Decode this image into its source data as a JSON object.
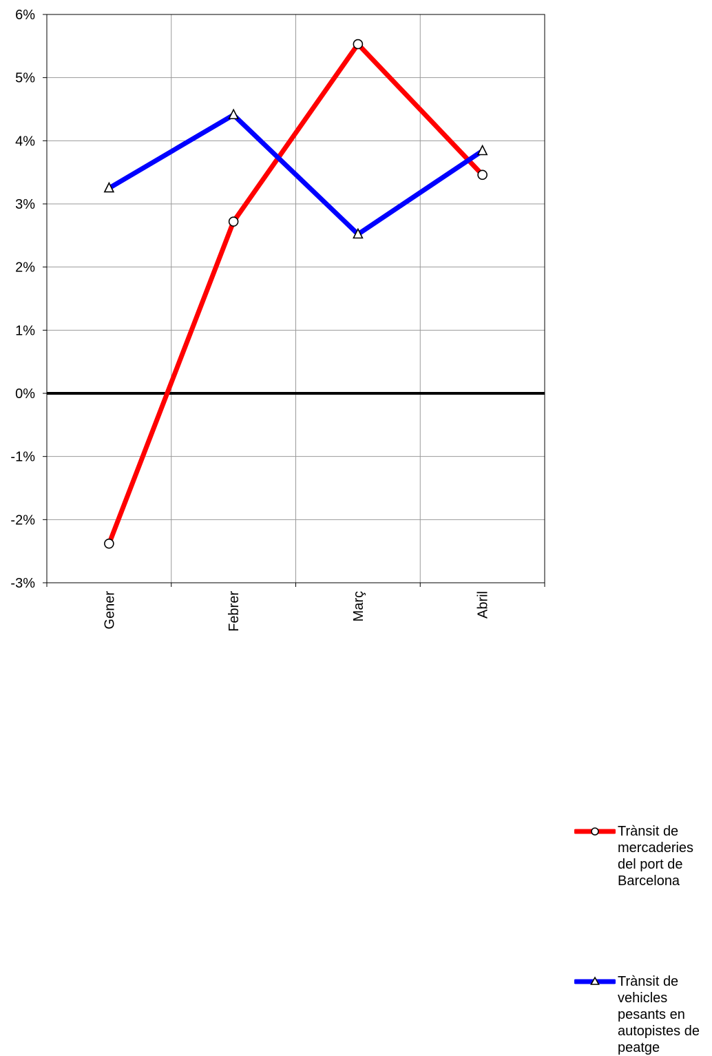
{
  "chart_data": {
    "type": "line",
    "categories": [
      "Gener",
      "Febrer",
      "Març",
      "Abril"
    ],
    "series": [
      {
        "name": "Trànsit de mercaderies del port de Barcelona",
        "values": [
          -2.38,
          2.72,
          5.53,
          3.46
        ],
        "color": "#ff0000",
        "marker": "circle"
      },
      {
        "name": "Trànsit de vehicles pesants en autopistes de peatge",
        "values": [
          3.25,
          4.41,
          2.52,
          3.84
        ],
        "color": "#0000ff",
        "marker": "triangle"
      }
    ],
    "ylim": [
      -3,
      6
    ],
    "yticks": [
      "-3%",
      "-2%",
      "-1%",
      "0%",
      "1%",
      "2%",
      "3%",
      "4%",
      "5%",
      "6%"
    ],
    "grid": true,
    "legend_position": "right"
  }
}
